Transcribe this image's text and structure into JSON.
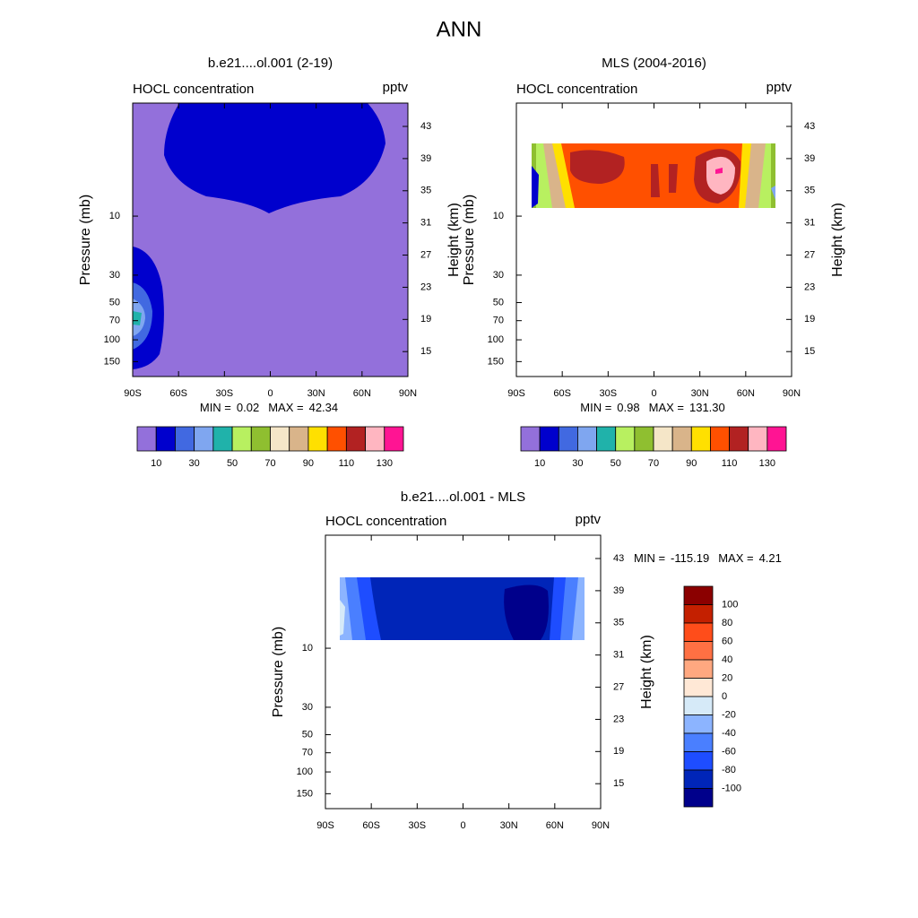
{
  "figure_title": "ANN",
  "chart_data": [
    {
      "type": "contour",
      "title": "b.e21....ol.001 (2-19)",
      "left_label": "HOCL concentration",
      "right_label": "pptv",
      "ylabel": "Pressure (mb)",
      "y2label": "Height (km)",
      "xlim": [
        -90,
        90
      ],
      "xticks": [
        {
          "value": -90,
          "label": "90S"
        },
        {
          "value": -60,
          "label": "60S"
        },
        {
          "value": -30,
          "label": "30S"
        },
        0,
        {
          "value": 30,
          "label": "30N"
        },
        {
          "value": 60,
          "label": "60N"
        },
        {
          "value": 90,
          "label": "90N"
        }
      ],
      "ylim": [
        198,
        1.22
      ],
      "ylog": true,
      "yticks": [
        10,
        30,
        50,
        70,
        100,
        150
      ],
      "y2lim": [
        11.9,
        45.9
      ],
      "y2ticks": [
        15,
        19,
        23,
        27,
        31,
        35,
        39,
        43
      ],
      "stats": {
        "min_label": "MIN =",
        "min": 0.02,
        "max_label": "MAX =",
        "max": 42.34
      },
      "colorbar": {
        "orientation": "horizontal",
        "colors": [
          "#9370db",
          "#0000cd",
          "#4169e1",
          "#7fa6f0",
          "#20b2aa",
          "#b8f060",
          "#8fbf30",
          "#f5e6c8",
          "#d9b48a",
          "#ffe000",
          "#ff5000",
          "#b22222",
          "#ffb6c1",
          "#ff1493"
        ],
        "ticks": [
          10,
          30,
          50,
          70,
          90,
          110,
          130
        ]
      }
    },
    {
      "type": "contour",
      "title": "MLS (2004-2016)",
      "left_label": "HOCL concentration",
      "right_label": "pptv",
      "ylabel": "Pressure (mb)",
      "y2label": "Height (km)",
      "xlim": [
        -90,
        90
      ],
      "xticks": [
        {
          "value": -90,
          "label": "90S"
        },
        {
          "value": -60,
          "label": "60S"
        },
        {
          "value": -30,
          "label": "30S"
        },
        0,
        {
          "value": 30,
          "label": "30N"
        },
        {
          "value": 60,
          "label": "60N"
        },
        {
          "value": 90,
          "label": "90N"
        }
      ],
      "ylim": [
        198,
        1.22
      ],
      "ylog": true,
      "yticks": [
        10,
        30,
        50,
        70,
        100,
        150
      ],
      "y2lim": [
        11.9,
        45.9
      ],
      "y2ticks": [
        15,
        19,
        23,
        27,
        31,
        35,
        39,
        43
      ],
      "stats": {
        "min_label": "MIN =",
        "min": 0.98,
        "max_label": "MAX =",
        "max": {
          "value": 131.3,
          "label": "131.30"
        }
      },
      "colorbar": {
        "orientation": "horizontal",
        "colors": [
          "#9370db",
          "#0000cd",
          "#4169e1",
          "#7fa6f0",
          "#20b2aa",
          "#b8f060",
          "#8fbf30",
          "#f5e6c8",
          "#d9b48a",
          "#ffe000",
          "#ff5000",
          "#b22222",
          "#ffb6c1",
          "#ff1493"
        ],
        "ticks": [
          10,
          30,
          50,
          70,
          90,
          110,
          130
        ]
      }
    },
    {
      "type": "contour",
      "title": "b.e21....ol.001 - MLS",
      "left_label": "HOCL concentration",
      "right_label": "pptv",
      "ylabel": "Pressure (mb)",
      "y2label": "Height (km)",
      "xlim": [
        -90,
        90
      ],
      "xticks": [
        {
          "value": -90,
          "label": "90S"
        },
        {
          "value": -60,
          "label": "60S"
        },
        {
          "value": -30,
          "label": "30S"
        },
        0,
        {
          "value": 30,
          "label": "30N"
        },
        {
          "value": 60,
          "label": "60N"
        },
        {
          "value": 90,
          "label": "90N"
        }
      ],
      "ylim": [
        198,
        1.22
      ],
      "ylog": true,
      "yticks": [
        10,
        30,
        50,
        70,
        100,
        150
      ],
      "y2lim": [
        11.9,
        45.9
      ],
      "y2ticks": [
        15,
        19,
        23,
        27,
        31,
        35,
        39,
        43
      ],
      "stats": {
        "min_label": "MIN =",
        "min": -115.19,
        "max_label": "MAX =",
        "max": 4.21
      },
      "colorbar": {
        "orientation": "vertical",
        "colors": [
          "#8b0000",
          "#c42000",
          "#ff4d1a",
          "#ff7043",
          "#ffa880",
          "#ffe8d6",
          "#d6eaf8",
          "#8cb4ff",
          "#4a7fff",
          "#1e4dff",
          "#0025b8",
          "#00008b"
        ],
        "ticks": [
          100,
          80,
          60,
          40,
          20,
          0,
          -20,
          -40,
          -60,
          -80,
          -100
        ]
      }
    }
  ]
}
